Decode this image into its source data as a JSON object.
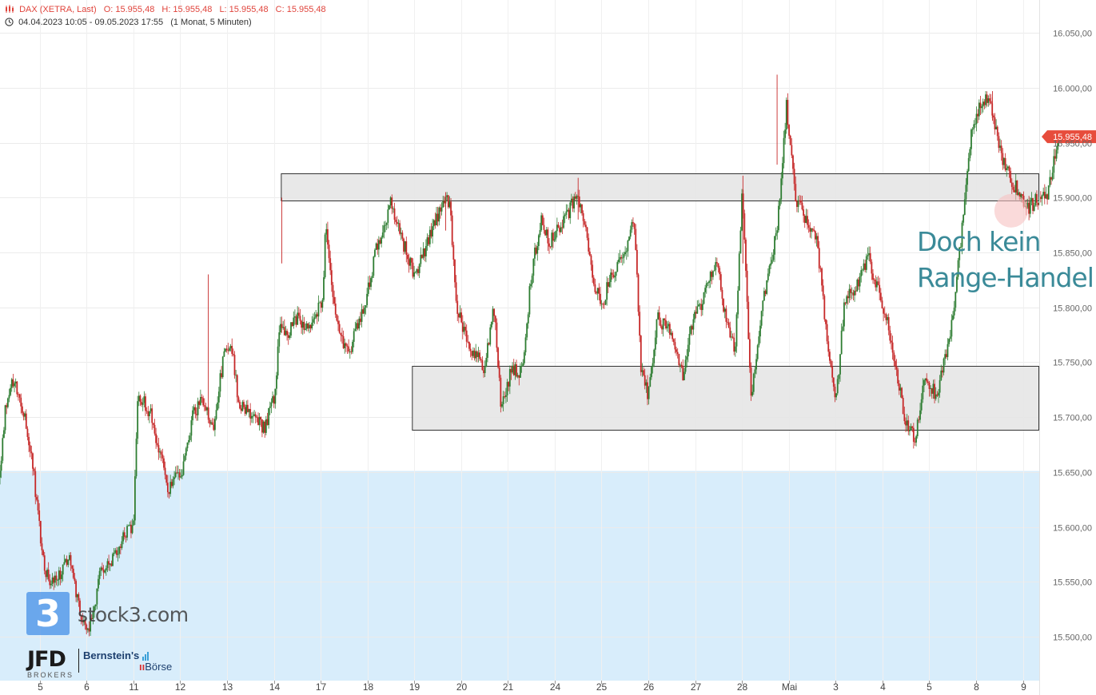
{
  "header": {
    "instrument": "DAX (XETRA, Last)",
    "open": "O: 15.955,48",
    "high": "H: 15.955,48",
    "low": "L: 15.955,48",
    "close": "C: 15.955,48",
    "range": "04.04.2023 10:05 - 09.05.2023 17:55",
    "interval": "(1 Monat, 5 Minuten)"
  },
  "annotation": {
    "line1": "Doch kein",
    "line2": "Range-Handel"
  },
  "watermark": {
    "logo_digit": "3",
    "site": "stock3.com"
  },
  "logos": {
    "jfd": "JFD",
    "jfd_sub": "BROKERS",
    "bernstein1": "Bernstein's",
    "bernstein2": "Börse"
  },
  "colors": {
    "up": "#2e7d32",
    "down": "#c62828",
    "price_label": "#e74c3c",
    "zone_fill": "#e6e6e6",
    "lower_band": "#d6ecfb",
    "annotation": "#3a8a98",
    "highlight_circle": "#f7c1c1"
  },
  "chart_data": {
    "type": "candlestick",
    "title": "DAX (XETRA, Last)",
    "y_axis": {
      "ylim": [
        15460,
        16080
      ],
      "ticks": [
        15500,
        15550,
        15600,
        15650,
        15700,
        15750,
        15800,
        15850,
        15900,
        15950,
        16000,
        16050
      ],
      "tick_labels": [
        "15.500,00",
        "15.550,00",
        "15.600,00",
        "15.650,00",
        "15.700,00",
        "15.750,00",
        "15.800,00",
        "15.850,00",
        "15.900,00",
        "15.950,00",
        "16.000,00",
        "16.050,00"
      ],
      "side": "right"
    },
    "x_axis": {
      "labels": [
        "5",
        "6",
        "11",
        "12",
        "13",
        "14",
        "17",
        "18",
        "19",
        "20",
        "21",
        "24",
        "25",
        "26",
        "27",
        "28",
        "Mai",
        "3",
        "4",
        "5",
        "8",
        "9"
      ],
      "slot_range": [
        0,
        22.2
      ]
    },
    "last_price": 15955.48,
    "last_price_label": "15.955,48",
    "zones": [
      {
        "name": "upper-zone",
        "from": 15897,
        "to": 15922,
        "x_start": 6.0,
        "x_end": 22.2
      },
      {
        "name": "lower-zone",
        "from": 15689,
        "to": 15747,
        "x_start": 8.8,
        "x_end": 22.2
      }
    ],
    "lower_band": {
      "from": 15460,
      "to": 15651
    },
    "highlight": {
      "x": 21.6,
      "y": 15888
    },
    "path": [
      [
        0.0,
        15645
      ],
      [
        0.12,
        15712
      ],
      [
        0.3,
        15735
      ],
      [
        0.5,
        15705
      ],
      [
        0.72,
        15648
      ],
      [
        0.9,
        15575
      ],
      [
        1.05,
        15548
      ],
      [
        1.3,
        15560
      ],
      [
        1.5,
        15575
      ],
      [
        1.75,
        15510
      ],
      [
        1.92,
        15508
      ],
      [
        2.15,
        15560
      ],
      [
        2.4,
        15570
      ],
      [
        2.6,
        15590
      ],
      [
        2.85,
        15600
      ],
      [
        2.95,
        15720
      ],
      [
        3.2,
        15705
      ],
      [
        3.45,
        15660
      ],
      [
        3.6,
        15635
      ],
      [
        3.9,
        15650
      ],
      [
        4.1,
        15700
      ],
      [
        4.3,
        15715
      ],
      [
        4.55,
        15690
      ],
      [
        4.8,
        15760
      ],
      [
        4.95,
        15760
      ],
      [
        5.1,
        15715
      ],
      [
        5.4,
        15700
      ],
      [
        5.65,
        15690
      ],
      [
        5.9,
        15725
      ],
      [
        5.95,
        15780
      ],
      [
        6.15,
        15775
      ],
      [
        6.35,
        15790
      ],
      [
        6.6,
        15780
      ],
      [
        6.9,
        15810
      ],
      [
        6.95,
        15880
      ],
      [
        7.2,
        15780
      ],
      [
        7.45,
        15760
      ],
      [
        7.75,
        15795
      ],
      [
        8.05,
        15855
      ],
      [
        8.35,
        15895
      ],
      [
        8.6,
        15860
      ],
      [
        8.85,
        15830
      ],
      [
        9.15,
        15860
      ],
      [
        9.5,
        15900
      ],
      [
        9.62,
        15890
      ],
      [
        9.75,
        15800
      ],
      [
        10.1,
        15760
      ],
      [
        10.35,
        15745
      ],
      [
        10.55,
        15800
      ],
      [
        10.7,
        15710
      ],
      [
        10.95,
        15745
      ],
      [
        11.15,
        15740
      ],
      [
        11.35,
        15830
      ],
      [
        11.55,
        15880
      ],
      [
        11.75,
        15860
      ],
      [
        12.0,
        15875
      ],
      [
        12.3,
        15900
      ],
      [
        12.45,
        15885
      ],
      [
        12.65,
        15830
      ],
      [
        12.85,
        15800
      ],
      [
        13.05,
        15830
      ],
      [
        13.3,
        15845
      ],
      [
        13.55,
        15880
      ],
      [
        13.7,
        15740
      ],
      [
        13.85,
        15720
      ],
      [
        14.05,
        15790
      ],
      [
        14.3,
        15780
      ],
      [
        14.6,
        15735
      ],
      [
        14.8,
        15790
      ],
      [
        15.05,
        15810
      ],
      [
        15.3,
        15845
      ],
      [
        15.5,
        15790
      ],
      [
        15.7,
        15760
      ],
      [
        15.85,
        15905
      ],
      [
        16.05,
        15720
      ],
      [
        16.3,
        15805
      ],
      [
        16.5,
        15850
      ],
      [
        16.62,
        15880
      ],
      [
        16.8,
        15985
      ],
      [
        17.0,
        15895
      ],
      [
        17.25,
        15880
      ],
      [
        17.45,
        15860
      ],
      [
        17.65,
        15780
      ],
      [
        17.85,
        15710
      ],
      [
        18.05,
        15810
      ],
      [
        18.3,
        15820
      ],
      [
        18.55,
        15845
      ],
      [
        18.75,
        15815
      ],
      [
        18.95,
        15790
      ],
      [
        19.15,
        15740
      ],
      [
        19.35,
        15695
      ],
      [
        19.55,
        15680
      ],
      [
        19.75,
        15740
      ],
      [
        20.0,
        15720
      ],
      [
        20.3,
        15775
      ],
      [
        20.5,
        15850
      ],
      [
        20.75,
        15960
      ],
      [
        20.95,
        15985
      ],
      [
        21.15,
        15990
      ],
      [
        21.35,
        15945
      ],
      [
        21.55,
        15920
      ],
      [
        21.75,
        15905
      ],
      [
        21.95,
        15890
      ],
      [
        22.15,
        15898
      ],
      [
        22.35,
        15900
      ],
      [
        22.5,
        15930
      ],
      [
        22.62,
        15955.48
      ]
    ]
  }
}
